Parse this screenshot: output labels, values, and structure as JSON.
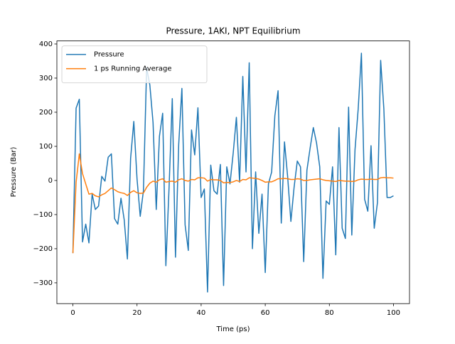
{
  "chart_data": {
    "type": "line",
    "title": "Pressure, 1AKI, NPT Equilibrium",
    "x_label": "Time (ps)",
    "y_label": "Pressure (Bar)",
    "x": [
      0,
      1,
      2,
      3,
      4,
      5,
      6,
      7,
      8,
      9,
      10,
      11,
      12,
      13,
      14,
      15,
      16,
      17,
      18,
      19,
      20,
      21,
      22,
      23,
      24,
      25,
      26,
      27,
      28,
      29,
      30,
      31,
      32,
      33,
      34,
      35,
      36,
      37,
      38,
      39,
      40,
      41,
      42,
      43,
      44,
      45,
      46,
      47,
      48,
      49,
      50,
      51,
      52,
      53,
      54,
      55,
      56,
      57,
      58,
      59,
      60,
      61,
      62,
      63,
      64,
      65,
      66,
      67,
      68,
      69,
      70,
      71,
      72,
      73,
      74,
      75,
      76,
      77,
      78,
      79,
      80,
      81,
      82,
      83,
      84,
      85,
      86,
      87,
      88,
      89,
      90,
      91,
      92,
      93,
      94,
      95,
      96,
      97,
      98,
      99,
      100
    ],
    "series": [
      {
        "name": "Pressure",
        "color": "#1f77b4",
        "values": [
          -213,
          212,
          238,
          -180,
          -128,
          -183,
          -40,
          -85,
          -75,
          12,
          -2,
          68,
          78,
          -112,
          -128,
          -52,
          -115,
          -230,
          65,
          173,
          5,
          -105,
          -30,
          330,
          280,
          170,
          -85,
          130,
          197,
          -250,
          -20,
          240,
          -225,
          105,
          270,
          -130,
          -205,
          148,
          75,
          213,
          -50,
          -25,
          -327,
          45,
          -30,
          -40,
          47,
          -308,
          40,
          -10,
          80,
          185,
          -5,
          305,
          25,
          345,
          -200,
          25,
          -155,
          -40,
          -270,
          -10,
          25,
          190,
          263,
          -125,
          113,
          10,
          -120,
          -20,
          57,
          40,
          -238,
          30,
          95,
          155,
          110,
          40,
          -287,
          -60,
          -70,
          40,
          -218,
          155,
          -140,
          -170,
          215,
          -160,
          90,
          210,
          373,
          -55,
          -90,
          102,
          -140,
          -65,
          352,
          210,
          -50,
          -50,
          -45
        ]
      },
      {
        "name": "1 ps Running Average",
        "color": "#ff7f0e",
        "values": [
          -213,
          -5,
          78,
          20,
          -10,
          -40,
          -38,
          -45,
          -48,
          -42,
          -38,
          -30,
          -22,
          -27,
          -33,
          -36,
          -38,
          -44,
          -35,
          -30,
          -36,
          -38,
          -37,
          -20,
          -8,
          -2,
          -5,
          2,
          5,
          -5,
          -3,
          -2,
          -5,
          2,
          5,
          0,
          -2,
          3,
          2,
          8,
          8,
          7,
          -2,
          3,
          2,
          2,
          0,
          -7,
          -6,
          -6,
          -4,
          0,
          -3,
          3,
          2,
          8,
          7,
          6,
          4,
          0,
          -5,
          -4,
          -4,
          0,
          5,
          5,
          6,
          5,
          3,
          3,
          5,
          4,
          0,
          0,
          2,
          3,
          4,
          5,
          2,
          0,
          -1,
          -2,
          -3,
          0,
          -1,
          -2,
          -2,
          -3,
          -2,
          2,
          4,
          3,
          3,
          4,
          3,
          3,
          8,
          9,
          8,
          8,
          7
        ]
      }
    ],
    "xlim": [
      -5,
      105
    ],
    "ylim": [
      -361,
      409
    ],
    "xticks": [
      0,
      20,
      40,
      60,
      80,
      100
    ],
    "yticks": [
      {
        "value": -300,
        "label": "−300"
      },
      {
        "value": -200,
        "label": "−200"
      },
      {
        "value": -100,
        "label": "−100"
      },
      0,
      100,
      200,
      300,
      400
    ],
    "grid": false,
    "legend": "upper left"
  }
}
